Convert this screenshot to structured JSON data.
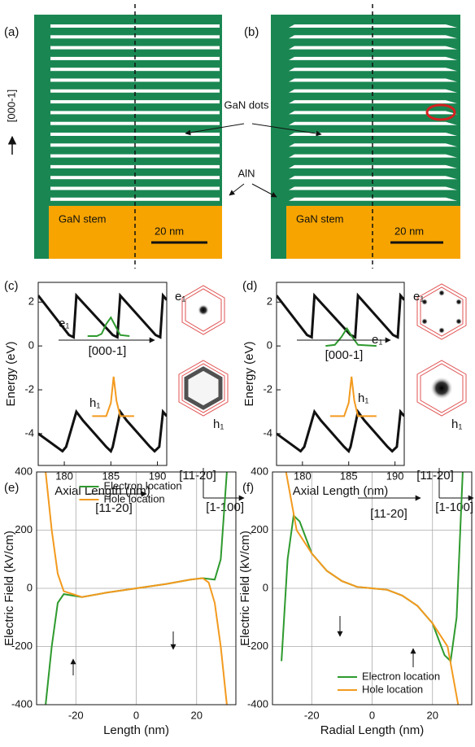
{
  "diagrams": {
    "a": {
      "label": "(a)",
      "stem": "GaN stem",
      "scale": "20 nm",
      "axis": "[000-1]"
    },
    "b": {
      "label": "(b)",
      "stem": "GaN stem",
      "scale": "20 nm"
    },
    "dots": "GaN dots",
    "barrier": "AlN"
  },
  "chart_data": [
    {
      "type": "line",
      "label": "(c)",
      "x_label": "Axial Length (nm)",
      "y_label": "Energy (eV)",
      "xlim": [
        177.2,
        191
      ],
      "xticks": [
        180,
        185,
        190
      ],
      "ylim": [
        -5.45,
        2.9
      ],
      "yticks": [
        2,
        0,
        -2,
        -4
      ],
      "grid": false,
      "annotations": [
        "e₁",
        "[000-1]",
        "h₁",
        "e₁",
        "h₁",
        "[11-20]",
        "[1-100]"
      ],
      "series": [
        {
          "color": "#111111",
          "x": [
            177.2,
            180.5,
            181,
            181.3,
            185.2,
            185.7,
            186,
            189.8,
            190.3,
            190.6,
            191
          ],
          "values": [
            2.3,
            0.5,
            0.4,
            2.3,
            0.5,
            0.4,
            2.3,
            0.5,
            0.4,
            2.3,
            2.1
          ]
        },
        {
          "color": "#111111",
          "x": [
            177.2,
            179.8,
            180.2,
            181.3,
            182,
            184.5,
            185,
            185.2,
            186,
            186.7,
            189.2,
            189.7,
            190.2,
            190.6,
            191
          ],
          "values": [
            -4.0,
            -4.8,
            -4.6,
            -3.0,
            -3.4,
            -4.6,
            -4.8,
            -4.6,
            -3.0,
            -3.4,
            -4.6,
            -4.8,
            -4.6,
            -3.0,
            -3.2
          ]
        },
        {
          "color": "#2e9a2e",
          "x": [
            182.5,
            183.5,
            184,
            184.5,
            185,
            185.5,
            186,
            187
          ],
          "values": [
            0.45,
            0.45,
            0.55,
            1.0,
            1.3,
            0.9,
            0.5,
            0.45
          ]
        },
        {
          "color": "#f39a1e",
          "x": [
            183,
            184.5,
            185,
            185.3,
            185.6,
            186,
            187.5
          ],
          "values": [
            -3.2,
            -3.2,
            -2.6,
            -1.4,
            -2.5,
            -3.2,
            -3.2
          ]
        }
      ]
    },
    {
      "type": "line",
      "label": "(d)",
      "x_label": "Axial Length (nm)",
      "y_label": "Energy (eV)",
      "xlim": [
        177.2,
        191
      ],
      "xticks": [
        180,
        185,
        190
      ],
      "ylim": [
        -5.45,
        2.9
      ],
      "yticks": [
        2,
        0,
        -2,
        -4
      ],
      "grid": false,
      "annotations": [
        "e₁",
        "[000-1]",
        "h₁",
        "e₁",
        "h₁",
        "[11-20]",
        "[1-100]"
      ],
      "series": [
        {
          "color": "#111111",
          "x": [
            177.2,
            180.5,
            181,
            181.3,
            185.2,
            185.7,
            186,
            189.8,
            190.3,
            190.6,
            191
          ],
          "values": [
            2.3,
            0.5,
            0.4,
            2.3,
            0.5,
            0.4,
            2.3,
            0.5,
            0.4,
            2.3,
            2.1
          ]
        },
        {
          "color": "#111111",
          "x": [
            177.2,
            179.8,
            180.2,
            181.3,
            182,
            184.5,
            185,
            185.2,
            186,
            186.7,
            189.2,
            189.7,
            190.2,
            190.6,
            191
          ],
          "values": [
            -4.0,
            -4.8,
            -4.6,
            -3.0,
            -3.4,
            -4.6,
            -4.8,
            -4.6,
            -3.0,
            -3.4,
            -4.6,
            -4.8,
            -4.6,
            -3.0,
            -3.2
          ]
        },
        {
          "color": "#2e9a2e",
          "x": [
            182.5,
            183.5,
            184.2,
            184.8,
            185.4,
            186,
            188
          ],
          "values": [
            0.0,
            0.05,
            0.4,
            0.8,
            0.4,
            0.05,
            0.0
          ]
        },
        {
          "color": "#f39a1e",
          "x": [
            183,
            184.5,
            185,
            185.3,
            185.6,
            186,
            188
          ],
          "values": [
            -3.2,
            -3.2,
            -2.6,
            -1.4,
            -2.5,
            -3.2,
            -3.2
          ]
        }
      ]
    },
    {
      "type": "line",
      "label": "(e)",
      "x_label": "Length (nm)",
      "y_label": "Electric Field (kV/cm)",
      "xlim": [
        -33,
        33
      ],
      "xticks": [
        -20,
        0,
        20
      ],
      "ylim": [
        -400,
        400
      ],
      "yticks": [
        -400,
        -200,
        0,
        200,
        400
      ],
      "grid": true,
      "legend": "upper center",
      "annotations": [
        "[11-20]"
      ],
      "series": [
        {
          "name": "Electron location",
          "color": "#2e9a2e",
          "x": [
            -30,
            -28,
            -26,
            -24,
            -18,
            -10,
            0,
            10,
            18,
            22,
            26,
            28,
            30
          ],
          "values": [
            -400,
            -200,
            -50,
            -20,
            -30,
            -15,
            0,
            15,
            30,
            35,
            30,
            100,
            400
          ]
        },
        {
          "name": "Hole location",
          "color": "#f39a1e",
          "x": [
            -30,
            -28,
            -26,
            -24,
            -18,
            -10,
            0,
            10,
            18,
            22,
            24,
            26,
            28,
            30
          ],
          "values": [
            400,
            200,
            50,
            -10,
            -30,
            -15,
            0,
            15,
            30,
            35,
            20,
            -50,
            -200,
            -400
          ]
        }
      ]
    },
    {
      "type": "line",
      "label": "(f)",
      "x_label": "Radial Length (nm)",
      "y_label": "Electric Field (kV/cm)",
      "xlim": [
        -33,
        33
      ],
      "xticks": [
        -20,
        0,
        20
      ],
      "ylim": [
        -400,
        400
      ],
      "yticks": [
        -400,
        -200,
        0,
        200,
        400
      ],
      "grid": true,
      "legend": "lower right",
      "annotations": [
        "[11-20]"
      ],
      "series": [
        {
          "name": "Electron location",
          "color": "#2e9a2e",
          "x": [
            -30,
            -28,
            -26,
            -24,
            -20,
            -15,
            -10,
            -5,
            0,
            5,
            10,
            15,
            20,
            24,
            26,
            28,
            30
          ],
          "values": [
            -250,
            100,
            250,
            230,
            120,
            60,
            25,
            5,
            0,
            -5,
            -25,
            -60,
            -120,
            -230,
            -250,
            -100,
            400
          ]
        },
        {
          "name": "Hole location",
          "color": "#f39a1e",
          "x": [
            -28.5,
            -25,
            -20,
            -15,
            -10,
            -5,
            0,
            5,
            10,
            15,
            20,
            25,
            28.5
          ],
          "values": [
            400,
            200,
            120,
            60,
            25,
            5,
            0,
            -5,
            -25,
            -60,
            -120,
            -200,
            -400
          ]
        }
      ]
    }
  ]
}
